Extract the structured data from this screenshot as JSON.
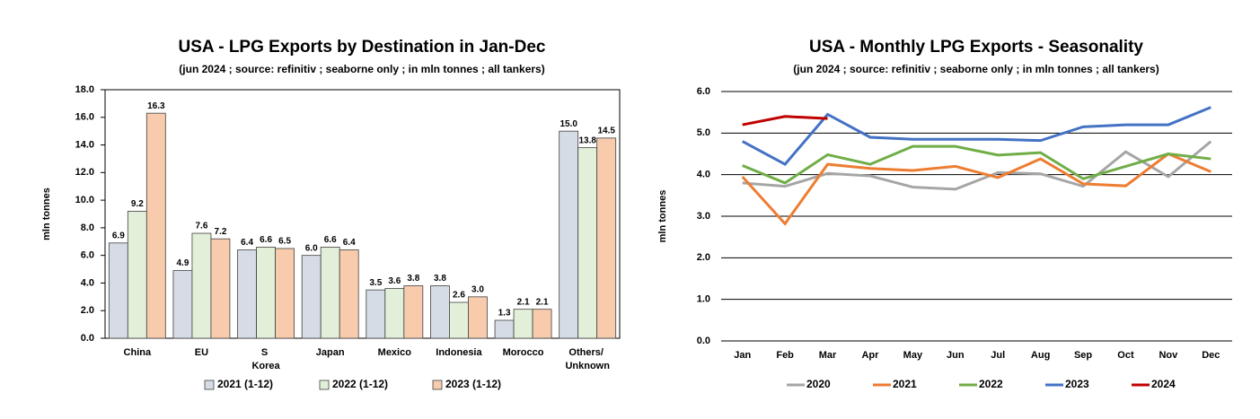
{
  "chart_data": [
    {
      "type": "bar",
      "title": "USA - LPG Exports by Destination in Jan-Dec",
      "subtitle": "(jun 2024 ; source: refinitiv ; seaborne only ; in mln tonnes ; all tankers)",
      "y_label": "mln tonnes",
      "categories": [
        "China",
        "EU",
        "S Korea",
        "Japan",
        "Mexico",
        "Indonesia",
        "Morocco",
        "Others/ Unknown"
      ],
      "series": [
        {
          "name": "2021 (1-12)",
          "color": "#d6dce5",
          "values": [
            6.9,
            4.9,
            6.4,
            6.0,
            3.5,
            3.8,
            1.3,
            15.0
          ],
          "value_labels": [
            "6.9",
            "4.9",
            "6.4",
            "6.0",
            "3.5",
            "3.8",
            "1.3",
            "15.0"
          ]
        },
        {
          "name": "2022 (1-12)",
          "color": "#e2f0d9",
          "values": [
            9.2,
            7.6,
            6.6,
            6.6,
            3.6,
            2.6,
            2.1,
            13.8
          ],
          "value_labels": [
            "9.2",
            "7.6",
            "6.6",
            "6.6",
            "3.6",
            "2.6",
            "2.1",
            "13.8"
          ]
        },
        {
          "name": "2023 (1-12)",
          "color": "#f8cbad",
          "values": [
            16.3,
            7.2,
            6.5,
            6.4,
            3.8,
            3.0,
            2.1,
            14.5
          ],
          "value_labels": [
            "16.3",
            "7.2",
            "6.5",
            "6.4",
            "3.8",
            "3.0",
            "2.1",
            "14.5"
          ]
        }
      ],
      "ylim": [
        0,
        18
      ],
      "yticks": [
        {
          "value": 0,
          "label": "0.0"
        },
        {
          "value": 2,
          "label": "2.0"
        },
        {
          "value": 4,
          "label": "4.0"
        },
        {
          "value": 6,
          "label": "6.0"
        },
        {
          "value": 8,
          "label": "8.0"
        },
        {
          "value": 10,
          "label": "10.0"
        },
        {
          "value": 12,
          "label": "12.0"
        },
        {
          "value": 14,
          "label": "14.0"
        },
        {
          "value": 16,
          "label": "16.0"
        },
        {
          "value": 18,
          "label": "18.0"
        }
      ],
      "grid": false,
      "legend": "bottom"
    },
    {
      "type": "line",
      "title": "USA - Monthly LPG Exports - Seasonality",
      "subtitle": "(jun 2024 ; source: refinitiv ; seaborne only ; in mln tonnes ; all tankers)",
      "y_label": "mln tonnes",
      "categories": [
        "Jan",
        "Feb",
        "Mar",
        "Apr",
        "May",
        "Jun",
        "Jul",
        "Aug",
        "Sep",
        "Oct",
        "Nov",
        "Dec"
      ],
      "series": [
        {
          "name": "2020",
          "color": "#a5a5a5",
          "values": [
            3.8,
            3.72,
            4.03,
            3.97,
            3.7,
            3.65,
            4.05,
            4.02,
            3.72,
            4.55,
            3.95,
            4.8
          ]
        },
        {
          "name": "2021",
          "color": "#ed7d31",
          "values": [
            3.95,
            2.82,
            4.25,
            4.15,
            4.1,
            4.2,
            3.93,
            4.38,
            3.78,
            3.73,
            4.5,
            4.07
          ]
        },
        {
          "name": "2022",
          "color": "#70ad47",
          "values": [
            4.22,
            3.8,
            4.48,
            4.25,
            4.68,
            4.68,
            4.47,
            4.53,
            3.9,
            4.2,
            4.5,
            4.38
          ]
        },
        {
          "name": "2023",
          "color": "#4472c4",
          "values": [
            4.8,
            4.25,
            5.45,
            4.9,
            4.85,
            4.85,
            4.85,
            4.82,
            5.15,
            5.2,
            5.2,
            5.62
          ]
        },
        {
          "name": "2024",
          "color": "#c00000",
          "values": [
            5.2,
            5.4,
            5.35,
            null,
            null,
            null,
            null,
            null,
            null,
            null,
            null,
            null
          ]
        }
      ],
      "ylim": [
        0,
        6
      ],
      "yticks": [
        {
          "value": 0,
          "label": "0.0"
        },
        {
          "value": 1,
          "label": "1.0"
        },
        {
          "value": 2,
          "label": "2.0"
        },
        {
          "value": 3,
          "label": "3.0"
        },
        {
          "value": 4,
          "label": "4.0"
        },
        {
          "value": 5,
          "label": "5.0"
        },
        {
          "value": 6,
          "label": "6.0"
        }
      ],
      "grid": true,
      "legend": "bottom"
    }
  ]
}
